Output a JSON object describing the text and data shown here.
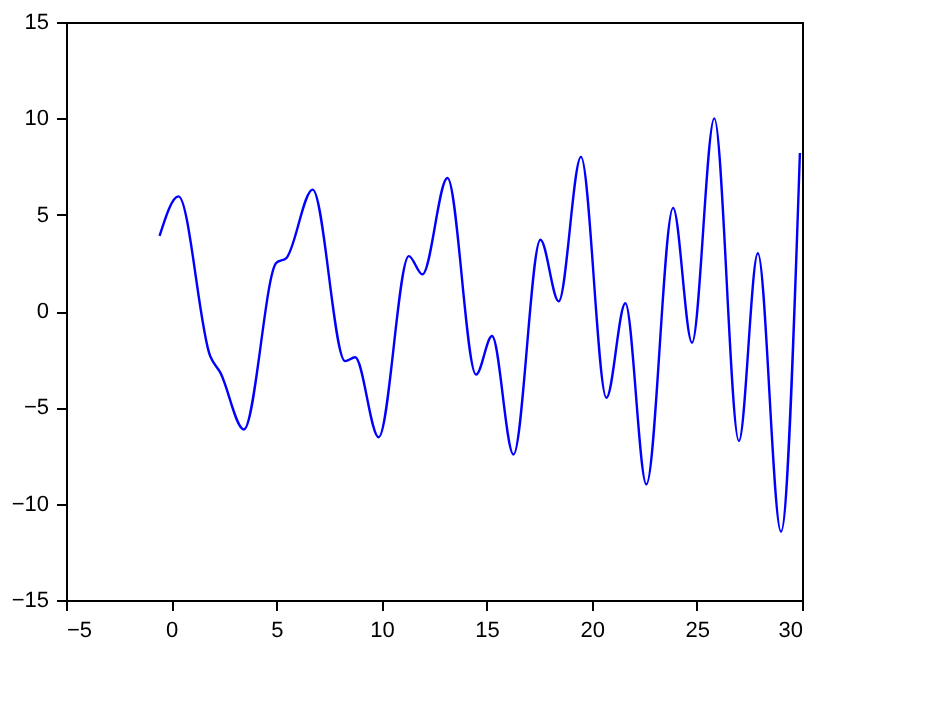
{
  "chart_data": {
    "type": "line",
    "series": [
      {
        "color": "#0000ff",
        "x": [
          -0.55,
          0.35,
          1.86,
          2.34,
          3.46,
          5.0,
          5.48,
          6.73,
          8.27,
          8.75,
          9.87,
          11.3,
          11.95,
          13.14,
          14.5,
          15.26,
          16.28,
          17.56,
          18.43,
          19.49,
          20.7,
          21.6,
          22.6,
          23.87,
          24.77,
          25.83,
          27.0,
          27.9,
          29.0,
          29.9
        ],
        "values": [
          3.9,
          5.95,
          -2.35,
          -3.2,
          -6.15,
          2.5,
          2.75,
          6.3,
          -2.6,
          -2.4,
          -6.55,
          2.85,
          1.9,
          6.9,
          -3.3,
          -1.3,
          -7.45,
          3.7,
          0.5,
          8.0,
          -4.5,
          0.4,
          -9.0,
          5.35,
          -1.65,
          10.0,
          -6.75,
          3.0,
          -11.45,
          8.2
        ]
      }
    ],
    "xlim": [
      -5,
      30
    ],
    "xticks": [
      -5,
      0,
      5,
      10,
      15,
      20,
      25,
      30
    ],
    "ylim": [
      -15,
      15
    ],
    "yticks": [
      -15,
      -10,
      -5,
      0,
      5,
      10,
      15
    ],
    "grid": false,
    "marker": "none",
    "line_style": "solid",
    "legend": false
  }
}
